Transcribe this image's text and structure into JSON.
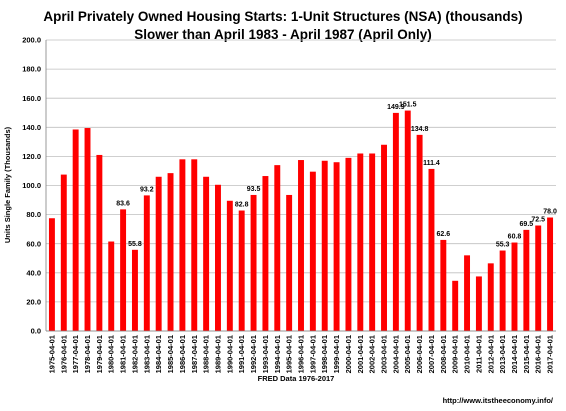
{
  "chart_data": {
    "type": "bar",
    "title": "April  Privately Owned Housing Starts: 1-Unit Structures (NSA) (thousands)",
    "subtitle": "Slower than April 1983 - April 1987 (April Only)",
    "xlabel": "FRED  Data 1976-2017",
    "ylabel": "Units Single Family (Thousands)",
    "ylim": [
      0,
      200
    ],
    "yticks": [
      "0.0",
      "20.0",
      "40.0",
      "60.0",
      "80.0",
      "100.0",
      "120.0",
      "140.0",
      "160.0",
      "180.0",
      "200.0"
    ],
    "grid": true,
    "bar_color": "#ff0000",
    "source_text": "http://www.itstheeconomy.info/",
    "categories": [
      "1975-04-01",
      "1976-04-01",
      "1977-04-01",
      "1978-04-01",
      "1979-04-01",
      "1980-04-01",
      "1981-04-01",
      "1982-04-01",
      "1983-04-01",
      "1984-04-01",
      "1985-04-01",
      "1986-04-01",
      "1987-04-01",
      "1988-04-01",
      "1989-04-01",
      "1990-04-01",
      "1991-04-01",
      "1992-04-01",
      "1993-04-01",
      "1994-04-01",
      "1995-04-01",
      "1996-04-01",
      "1997-04-01",
      "1998-04-01",
      "1999-04-01",
      "2000-04-01",
      "2001-04-01",
      "2002-04-01",
      "2003-04-01",
      "2004-04-01",
      "2005-04-01",
      "2006-04-01",
      "2007-04-01",
      "2008-04-01",
      "2009-04-01",
      "2010-04-01",
      "2011-04-01",
      "2012-04-01",
      "2013-04-01",
      "2014-04-01",
      "2015-04-01",
      "2016-04-01",
      "2017-04-01"
    ],
    "values": [
      77.5,
      107.5,
      138.5,
      139.5,
      121.0,
      61.5,
      83.6,
      55.8,
      93.2,
      106.0,
      108.5,
      118.0,
      118.0,
      106.0,
      100.5,
      89.5,
      82.8,
      93.5,
      106.5,
      114.0,
      93.5,
      117.5,
      109.5,
      117.0,
      116.0,
      119.0,
      122.0,
      122.0,
      128.0,
      149.9,
      151.5,
      134.8,
      111.4,
      62.6,
      34.5,
      52.0,
      37.5,
      46.5,
      55.3,
      60.8,
      69.5,
      72.5,
      78.0
    ],
    "data_labels": [
      {
        "index": 6,
        "text": "83.6"
      },
      {
        "index": 7,
        "text": "55.8"
      },
      {
        "index": 8,
        "text": "93.2"
      },
      {
        "index": 16,
        "text": "82.8"
      },
      {
        "index": 17,
        "text": "93.5"
      },
      {
        "index": 29,
        "text": "149.9"
      },
      {
        "index": 30,
        "text": "151.5"
      },
      {
        "index": 31,
        "text": "134.8"
      },
      {
        "index": 32,
        "text": "111.4"
      },
      {
        "index": 33,
        "text": "62.6"
      },
      {
        "index": 38,
        "text": "55.3"
      },
      {
        "index": 39,
        "text": "60.8"
      },
      {
        "index": 40,
        "text": "69.5"
      },
      {
        "index": 41,
        "text": "72.5"
      },
      {
        "index": 42,
        "text": "78.0"
      }
    ]
  }
}
